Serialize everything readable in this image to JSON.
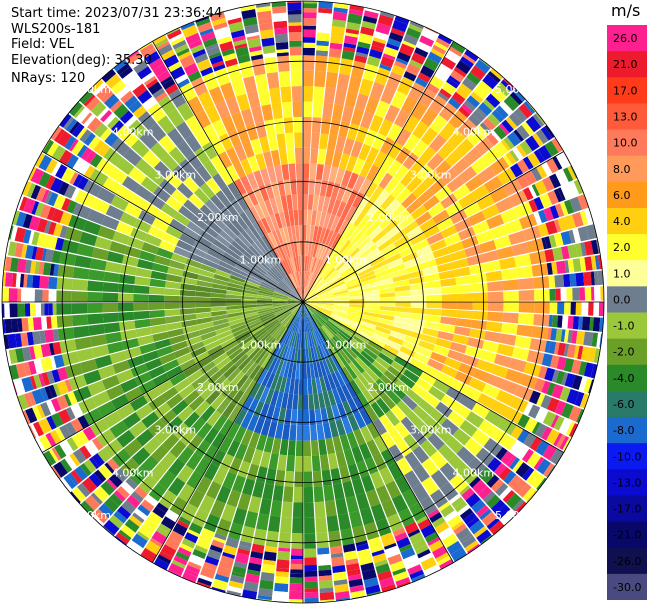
{
  "header": {
    "start_time": "Start time: 2023/07/31 23:36:44",
    "instrument": "WLS200s-181",
    "field": "Field: VEL",
    "elevation": "Elevation(deg): 35.30",
    "nrays": "NRays: 120"
  },
  "colorbar": {
    "unit": "m/s",
    "ticks": [
      "26.0",
      "21.0",
      "17.0",
      "13.0",
      "10.0",
      "8.0",
      "6.0",
      "4.0",
      "2.0",
      "1.0",
      "0.0",
      "-1.0",
      "-2.0",
      "-4.0",
      "-6.0",
      "-8.0",
      "-10.0",
      "-13.0",
      "-17.0",
      "-21.0",
      "-26.0",
      "-30.0"
    ],
    "colors": [
      "#ff2090",
      "#ee1a2e",
      "#ff3b1a",
      "#ff5a3a",
      "#ff7a5a",
      "#ff9a5a",
      "#ff9a1a",
      "#ffcf10",
      "#ffff30",
      "#ffff9a",
      "#6e7e8e",
      "#9ac83a",
      "#6aa028",
      "#2a8a2a",
      "#2a7a6a",
      "#1a6ad0",
      "#0a1af0",
      "#0a0ad0",
      "#0a0aa0",
      "#08086a",
      "#101050",
      "#4a4a80"
    ]
  },
  "chart_data": {
    "type": "ppi-radar",
    "field": "VEL",
    "unit": "m/s",
    "range_rings_km": [
      1.0,
      2.0,
      3.0,
      4.0,
      5.0
    ],
    "range_ring_labels": [
      "1.00km",
      "2.00km",
      "3.00km",
      "4.00km",
      "5.00km"
    ],
    "spoke_angles_deg": [
      0,
      30,
      60,
      90,
      120,
      150,
      180,
      210,
      240,
      270,
      300,
      330
    ],
    "nrays": 120,
    "max_range_km": 5.0,
    "sectors": [
      {
        "from_az": 330,
        "to_az": 30,
        "near_field": "red/salmon",
        "outer_field": "orange-yellow"
      },
      {
        "from_az": 30,
        "to_az": 120,
        "near_field": "yellow",
        "outer_field": "orange-yellow"
      },
      {
        "from_az": 120,
        "to_az": 150,
        "near_field": "green",
        "outer_field": "gray/yellow"
      },
      {
        "from_az": 150,
        "to_az": 210,
        "near_field": "blue",
        "outer_field": "green"
      },
      {
        "from_az": 210,
        "to_az": 290,
        "near_field": "olive green",
        "outer_field": "green"
      },
      {
        "from_az": 290,
        "to_az": 330,
        "near_field": "gray",
        "outer_field": "yellow-green"
      }
    ]
  }
}
